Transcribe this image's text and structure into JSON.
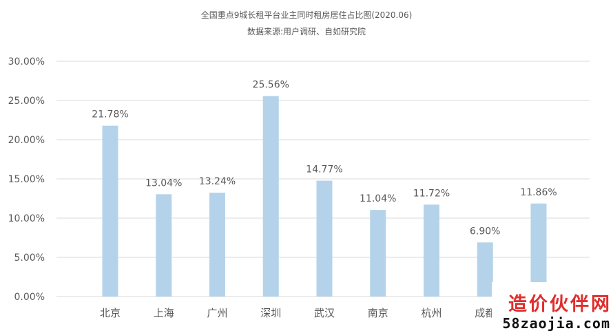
{
  "chart_data": {
    "type": "bar",
    "title": "全国重点9城长租平台业主同时租房居住占比图(2020.06)",
    "subtitle": "数据来源:用户调研、自如研究院",
    "categories": [
      "北京",
      "上海",
      "广州",
      "深圳",
      "武汉",
      "南京",
      "杭州",
      "成都",
      ""
    ],
    "values": [
      21.78,
      13.04,
      13.24,
      25.56,
      14.77,
      11.04,
      11.72,
      6.9,
      11.86
    ],
    "data_labels": [
      "21.78%",
      "13.04%",
      "13.24%",
      "25.56%",
      "14.77%",
      "11.04%",
      "11.72%",
      "6.90%",
      "11.86%"
    ],
    "y_ticks": [
      0,
      5,
      10,
      15,
      20,
      25,
      30
    ],
    "y_tick_labels": [
      "0.00%",
      "5.00%",
      "10.00%",
      "15.00%",
      "20.00%",
      "25.00%",
      "30.00%"
    ],
    "ylim": [
      0,
      30
    ],
    "xlabel": "",
    "ylabel": "",
    "grid": true,
    "legend": "none",
    "bar_color": "#b4d3ea",
    "grid_color": "#d9d9d9",
    "text_color": "#595959"
  },
  "watermark": {
    "line1": "造价伙伴网",
    "line2": "58zaojia.com"
  }
}
